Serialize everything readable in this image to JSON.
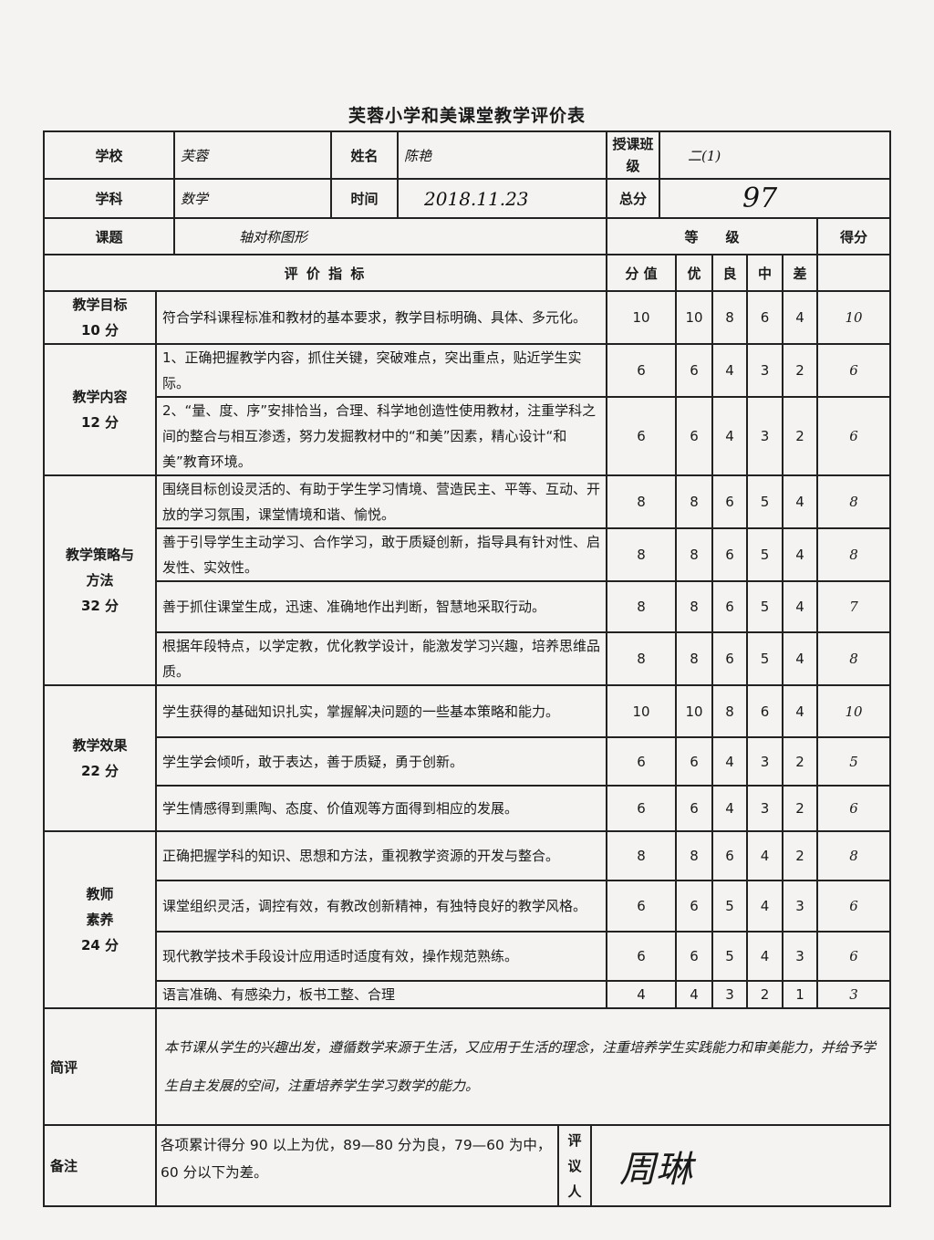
{
  "title": "芙蓉小学和美课堂教学评价表",
  "header": {
    "school_label": "学校",
    "school_value": "芙蓉",
    "name_label": "姓名",
    "name_value": "陈艳",
    "class_label": "授课班级",
    "class_value": "二(1)",
    "subject_label": "学科",
    "subject_value": "数学",
    "time_label": "时间",
    "time_value": "2018.11.23",
    "total_label": "总分",
    "total_value": "97",
    "topic_label": "课题",
    "topic_value": "轴对称图形",
    "grade_label": "等　　级",
    "score_label": "得分",
    "indicator_label": "评 价 指 标",
    "cols": [
      "分 值",
      "优",
      "良",
      "中",
      "差"
    ]
  },
  "sections": [
    {
      "category": [
        "教学目标",
        "10 分"
      ],
      "rows": [
        {
          "text": "符合学科课程标准和教材的基本要求，教学目标明确、具体、多元化。",
          "value": "10",
          "grades": [
            "10",
            "8",
            "6",
            "4"
          ],
          "score": "10"
        }
      ]
    },
    {
      "category": [
        "教学内容",
        "12 分"
      ],
      "rows": [
        {
          "text": "1、正确把握教学内容，抓住关键，突破难点，突出重点，贴近学生实际。",
          "value": "6",
          "grades": [
            "6",
            "4",
            "3",
            "2"
          ],
          "score": "6"
        },
        {
          "text": "2、“量、度、序”安排恰当，合理、科学地创造性使用教材，注重学科之间的整合与相互渗透，努力发掘教材中的“和美”因素，精心设计“和美”教育环境。",
          "value": "6",
          "grades": [
            "6",
            "4",
            "3",
            "2"
          ],
          "score": "6"
        }
      ]
    },
    {
      "category": [
        "教学策略与",
        "方法",
        "32 分"
      ],
      "rows": [
        {
          "text": "围绕目标创设灵活的、有助于学生学习情境、营造民主、平等、互动、开放的学习氛围，课堂情境和谐、愉悦。",
          "value": "8",
          "grades": [
            "8",
            "6",
            "5",
            "4"
          ],
          "score": "8"
        },
        {
          "text": "善于引导学生主动学习、合作学习，敢于质疑创新，指导具有针对性、启发性、实效性。",
          "value": "8",
          "grades": [
            "8",
            "6",
            "5",
            "4"
          ],
          "score": "8"
        },
        {
          "text": "善于抓住课堂生成，迅速、准确地作出判断，智慧地采取行动。",
          "value": "8",
          "grades": [
            "8",
            "6",
            "5",
            "4"
          ],
          "score": "7"
        },
        {
          "text": "根据年段特点，以学定教，优化教学设计，能激发学习兴趣，培养思维品质。",
          "value": "8",
          "grades": [
            "8",
            "6",
            "5",
            "4"
          ],
          "score": "8"
        }
      ]
    },
    {
      "category": [
        "教学效果",
        "22 分"
      ],
      "rows": [
        {
          "text": "学生获得的基础知识扎实，掌握解决问题的一些基本策略和能力。",
          "value": "10",
          "grades": [
            "10",
            "8",
            "6",
            "4"
          ],
          "score": "10"
        },
        {
          "text": "学生学会倾听，敢于表达，善于质疑，勇于创新。",
          "value": "6",
          "grades": [
            "6",
            "4",
            "3",
            "2"
          ],
          "score": "5"
        },
        {
          "text": "学生情感得到熏陶、态度、价值观等方面得到相应的发展。",
          "value": "6",
          "grades": [
            "6",
            "4",
            "3",
            "2"
          ],
          "score": "6"
        }
      ]
    },
    {
      "category": [
        "教师",
        "素养",
        "24 分"
      ],
      "rows": [
        {
          "text": "正确把握学科的知识、思想和方法，重视教学资源的开发与整合。",
          "value": "8",
          "grades": [
            "8",
            "6",
            "4",
            "2"
          ],
          "score": "8"
        },
        {
          "text": "课堂组织灵活，调控有效，有教改创新精神，有独特良好的教学风格。",
          "value": "6",
          "grades": [
            "6",
            "5",
            "4",
            "3"
          ],
          "score": "6"
        },
        {
          "text": "现代教学技术手段设计应用适时适度有效，操作规范熟练。",
          "value": "6",
          "grades": [
            "6",
            "5",
            "4",
            "3"
          ],
          "score": "6"
        },
        {
          "text": "语言准确、有感染力，板书工整、合理",
          "value": "4",
          "grades": [
            "4",
            "3",
            "2",
            "1"
          ],
          "score": "3"
        }
      ]
    }
  ],
  "comment": {
    "label": "简评",
    "text": "本节课从学生的兴趣出发，遵循数学来源于生活，又应用于生活的理念，注重培养学生实践能力和审美能力，并给予学生自主发展的空间，注重培养学生学习数学的能力。"
  },
  "note": {
    "label": "备注",
    "text": "各项累计得分 90 以上为优，89—80 分为良，79—60 为中，60 分以下为差。",
    "reviewer_label": [
      "评",
      "议",
      "人"
    ],
    "reviewer_value": "周琳"
  }
}
